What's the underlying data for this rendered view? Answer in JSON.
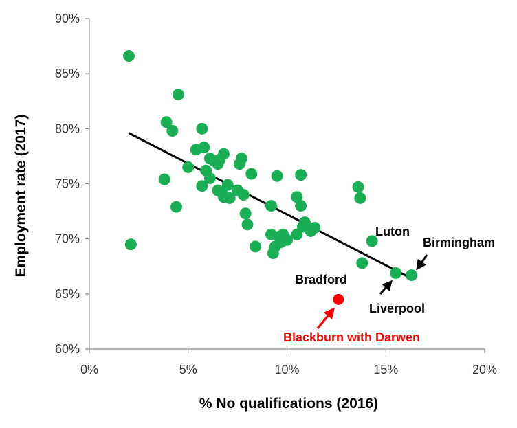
{
  "chart_data": {
    "type": "scatter",
    "xlabel": "% No qualifications (2016)",
    "ylabel": "Employment rate (2017)",
    "xlim": [
      0,
      20
    ],
    "ylim": [
      60,
      90
    ],
    "x_ticks": [
      {
        "value": 0,
        "label": "0%"
      },
      {
        "value": 5,
        "label": "5%"
      },
      {
        "value": 10,
        "label": "10%"
      },
      {
        "value": 15,
        "label": "15%"
      },
      {
        "value": 20,
        "label": "20%"
      }
    ],
    "y_ticks": [
      {
        "value": 60,
        "label": "60%"
      },
      {
        "value": 65,
        "label": "65%"
      },
      {
        "value": 70,
        "label": "70%"
      },
      {
        "value": 75,
        "label": "75%"
      },
      {
        "value": 80,
        "label": "80%"
      },
      {
        "value": 85,
        "label": "85%"
      },
      {
        "value": 90,
        "label": "90%"
      }
    ],
    "grid": false,
    "colors": {
      "points": "#1aaf54",
      "highlight": "#ff0000",
      "trendline": "#000000",
      "axis": "#888888"
    },
    "points": [
      [
        2.0,
        86.6
      ],
      [
        2.1,
        69.5
      ],
      [
        3.8,
        75.4
      ],
      [
        3.9,
        80.6
      ],
      [
        4.2,
        79.8
      ],
      [
        4.4,
        72.9
      ],
      [
        4.5,
        83.1
      ],
      [
        5.0,
        76.5
      ],
      [
        5.4,
        78.1
      ],
      [
        5.7,
        80.0
      ],
      [
        5.7,
        74.8
      ],
      [
        5.8,
        78.3
      ],
      [
        5.9,
        76.2
      ],
      [
        6.1,
        75.5
      ],
      [
        6.1,
        77.3
      ],
      [
        6.3,
        77.1
      ],
      [
        6.5,
        76.8
      ],
      [
        6.5,
        74.4
      ],
      [
        6.6,
        77.2
      ],
      [
        6.7,
        74.2
      ],
      [
        6.8,
        77.7
      ],
      [
        6.8,
        73.8
      ],
      [
        7.0,
        74.9
      ],
      [
        7.1,
        73.7
      ],
      [
        7.5,
        74.4
      ],
      [
        7.6,
        76.8
      ],
      [
        7.7,
        77.3
      ],
      [
        7.8,
        74.0
      ],
      [
        7.9,
        72.3
      ],
      [
        8.0,
        71.3
      ],
      [
        8.2,
        75.9
      ],
      [
        8.4,
        69.3
      ],
      [
        9.2,
        73.0
      ],
      [
        9.2,
        70.4
      ],
      [
        9.3,
        68.7
      ],
      [
        9.4,
        69.3
      ],
      [
        9.5,
        75.7
      ],
      [
        9.6,
        70.2
      ],
      [
        9.7,
        69.7
      ],
      [
        9.8,
        70.4
      ],
      [
        10.0,
        69.9
      ],
      [
        10.5,
        73.8
      ],
      [
        10.5,
        70.4
      ],
      [
        10.7,
        75.8
      ],
      [
        10.7,
        73.0
      ],
      [
        10.8,
        71.1
      ],
      [
        10.9,
        71.5
      ],
      [
        11.2,
        70.7
      ],
      [
        11.4,
        71.0
      ],
      [
        13.6,
        74.7
      ],
      [
        13.7,
        73.7
      ],
      [
        13.8,
        67.8
      ],
      [
        14.3,
        69.8
      ],
      [
        15.5,
        66.9
      ],
      [
        16.3,
        66.7
      ]
    ],
    "highlight_point": {
      "label": "Blackburn with Darwen",
      "x": 12.6,
      "y": 64.5
    },
    "trendline": {
      "x": [
        2.0,
        16.3
      ],
      "y": [
        79.6,
        66.4
      ]
    },
    "annotations": [
      {
        "text": "Luton",
        "x": 14.3,
        "y": 69.8
      },
      {
        "text": "Birmingham",
        "x": 16.3,
        "y": 66.7
      },
      {
        "text": "Bradford",
        "x": 13.8,
        "y": 67.8
      },
      {
        "text": "Liverpool",
        "x": 15.5,
        "y": 66.9
      },
      {
        "text": "Blackburn with Darwen",
        "x": 12.6,
        "y": 64.5
      }
    ]
  }
}
